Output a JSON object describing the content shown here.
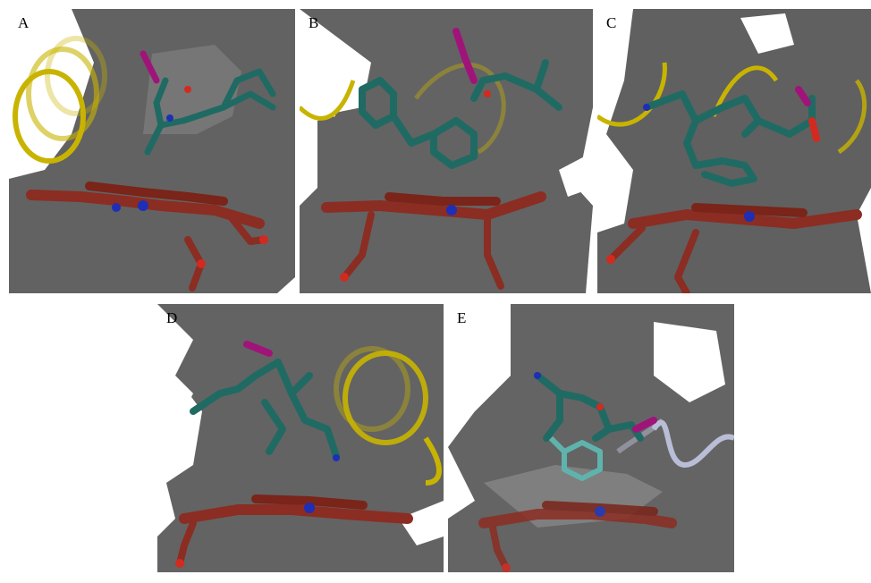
{
  "figure": {
    "panels": [
      {
        "label": "A"
      },
      {
        "label": "B"
      },
      {
        "label": "C"
      },
      {
        "label": "D"
      },
      {
        "label": "E"
      }
    ]
  },
  "colors": {
    "cavity": "#5f5f5f",
    "cavity_light": "#8a8a8a",
    "heme": "#8b2d22",
    "heme_highlight": "#c04a3a",
    "ligand": "#1f6b63",
    "ligand_dark": "#0f4540",
    "halogen": "#a0147a",
    "nitrogen": "#1e2fb5",
    "oxygen": "#d32a20",
    "helix_yellow": "#c8b400",
    "helix_lavender": "#b9bed6",
    "aromatic_cyan": "#5fb3ad"
  }
}
